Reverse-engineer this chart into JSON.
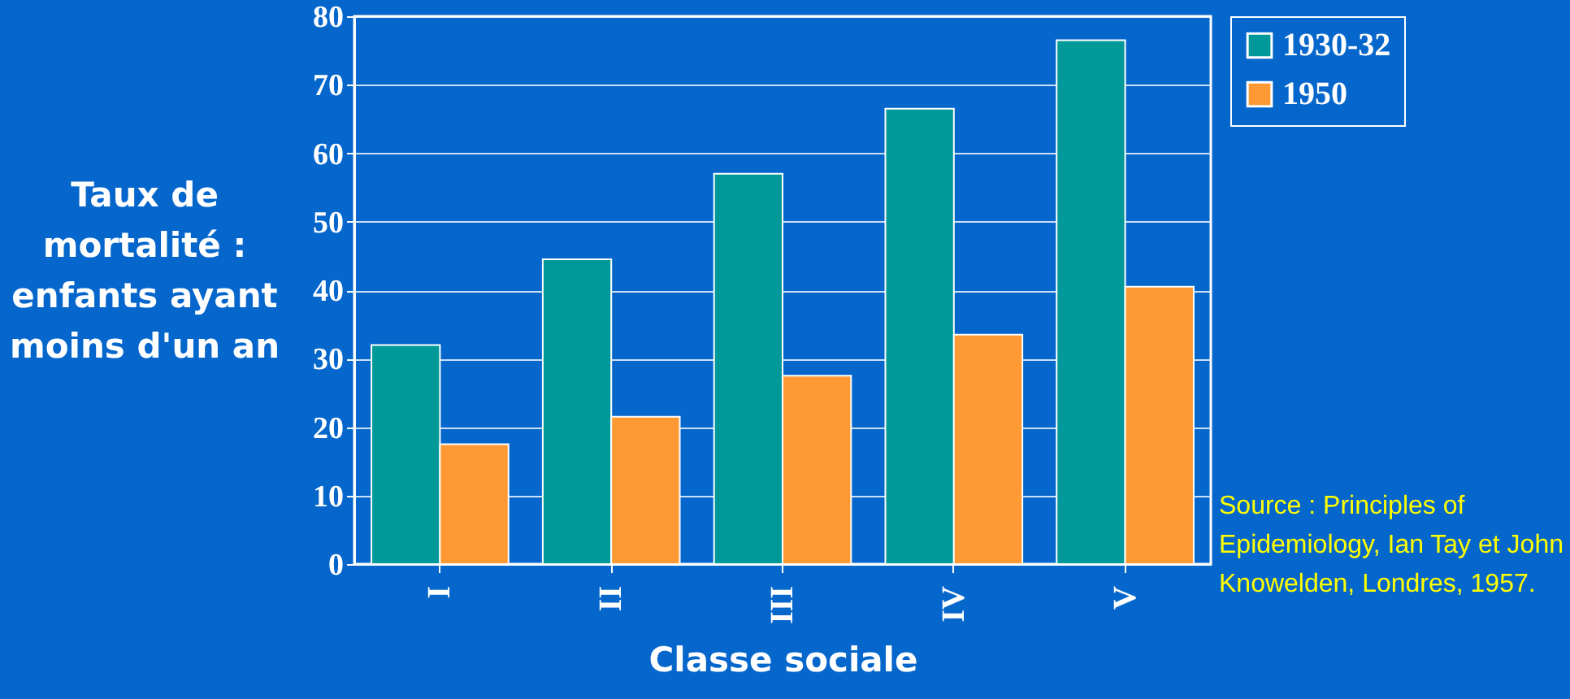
{
  "chart_data": {
    "type": "bar",
    "ylabel": "Taux de mortalité : enfants ayant moins d'un an",
    "xlabel": "Classe sociale",
    "categories": [
      "I",
      "II",
      "III",
      "IV",
      "V"
    ],
    "series": [
      {
        "name": "1930-32",
        "color": "#009999",
        "values": [
          32,
          44.5,
          57,
          66.5,
          76.5
        ]
      },
      {
        "name": "1950",
        "color": "#ff9933",
        "values": [
          17.5,
          21.5,
          27.5,
          33.5,
          40.5
        ]
      }
    ],
    "ylim": [
      0,
      80
    ],
    "yticks": [
      0,
      10,
      20,
      30,
      40,
      50,
      60,
      70,
      80
    ],
    "grid": "y",
    "legend": "right",
    "annotations": [
      "Source : Principles of Epidemiology, Ian Tay et John Knowelden, Londres, 1957."
    ]
  }
}
